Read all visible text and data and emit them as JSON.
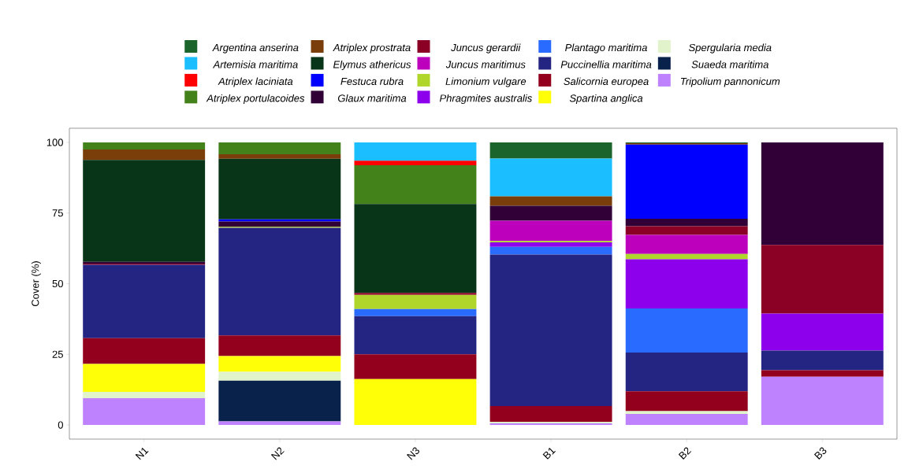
{
  "chart_data": {
    "type": "bar",
    "stacked": true,
    "ylabel": "Cover (%)",
    "categories": [
      "N1",
      "N2",
      "N3",
      "B1",
      "B2",
      "B3"
    ],
    "ylim": [
      -5,
      105
    ],
    "yticks": [
      0,
      25,
      50,
      75,
      100
    ],
    "legend": "top",
    "series": [
      {
        "name": "*Tripolium pannonicum*",
        "color": "#bf82ff",
        "values": [
          9.5,
          1.3,
          0,
          0.6,
          3.9,
          17.1
        ]
      },
      {
        "name": "*Suaeda maritima*",
        "color": "#09224b",
        "values": [
          0,
          14.4,
          0,
          0,
          0,
          0
        ]
      },
      {
        "name": "*Spergularia media*",
        "color": "#e0f3cb",
        "values": [
          2.2,
          3.1,
          0,
          0.5,
          1.0,
          0
        ]
      },
      {
        "name": "*Spartina anglica*",
        "color": "#ffff08",
        "values": [
          9.9,
          5.6,
          16.2,
          0,
          0,
          0
        ]
      },
      {
        "name": "*Salicornia europea*",
        "color": "#93001d",
        "values": [
          9.1,
          7.3,
          8.8,
          5.6,
          7.0,
          2.3
        ]
      },
      {
        "name": "*Puccinellia maritima*",
        "color": "#242483",
        "values": [
          26.0,
          38.1,
          13.5,
          53.6,
          13.7,
          6.9
        ]
      },
      {
        "name": "*Plantago maritima*",
        "color": "#2a6bff",
        "values": [
          0,
          0,
          2.5,
          2.7,
          15.6,
          0
        ]
      },
      {
        "name": "*Phragmites australis*",
        "color": "#8d00eb",
        "values": [
          0,
          0,
          0,
          1.6,
          17.4,
          13.1
        ]
      },
      {
        "name": "*Limonium vulgare*",
        "color": "#b0d62b",
        "values": [
          0,
          0.3,
          5.0,
          0.5,
          1.9,
          0
        ]
      },
      {
        "name": "*Juncus maritimus*",
        "color": "#bc00bc",
        "values": [
          0,
          0,
          0,
          7.2,
          6.8,
          0
        ]
      },
      {
        "name": "*Juncus gerardii*",
        "color": "#8b0025",
        "values": [
          0.4,
          0,
          0.7,
          0,
          3.0,
          24.3
        ]
      },
      {
        "name": "*Glaux maritima*",
        "color": "#300037",
        "values": [
          0.6,
          1.9,
          0,
          5.3,
          2.7,
          36.3
        ]
      },
      {
        "name": "*Festuca rubra*",
        "color": "#0000ff",
        "values": [
          0,
          0.8,
          0,
          0,
          26.2,
          0
        ]
      },
      {
        "name": "*Elymus athericus*",
        "color": "#083518",
        "values": [
          36.1,
          21.4,
          31.5,
          0,
          0,
          0
        ]
      },
      {
        "name": "*Atriplex prostrata*",
        "color": "#793e0a",
        "values": [
          3.7,
          1.6,
          0,
          3.3,
          0.5,
          0
        ]
      },
      {
        "name": "*Atriplex portulacoides*",
        "color": "#43821a",
        "values": [
          2.5,
          4.2,
          13.7,
          0,
          0,
          0
        ]
      },
      {
        "name": "*Atriplex laciniata*",
        "color": "#ff0000",
        "values": [
          0,
          0,
          1.6,
          0,
          0,
          0
        ]
      },
      {
        "name": "*Artemisia maritima*",
        "color": "#1bbfff",
        "values": [
          0,
          0,
          6.5,
          13.4,
          0,
          0
        ]
      },
      {
        "name": "*Argentina anserina*",
        "color": "#1b642b",
        "values": [
          0,
          0,
          0,
          5.7,
          0.3,
          0
        ]
      }
    ]
  }
}
